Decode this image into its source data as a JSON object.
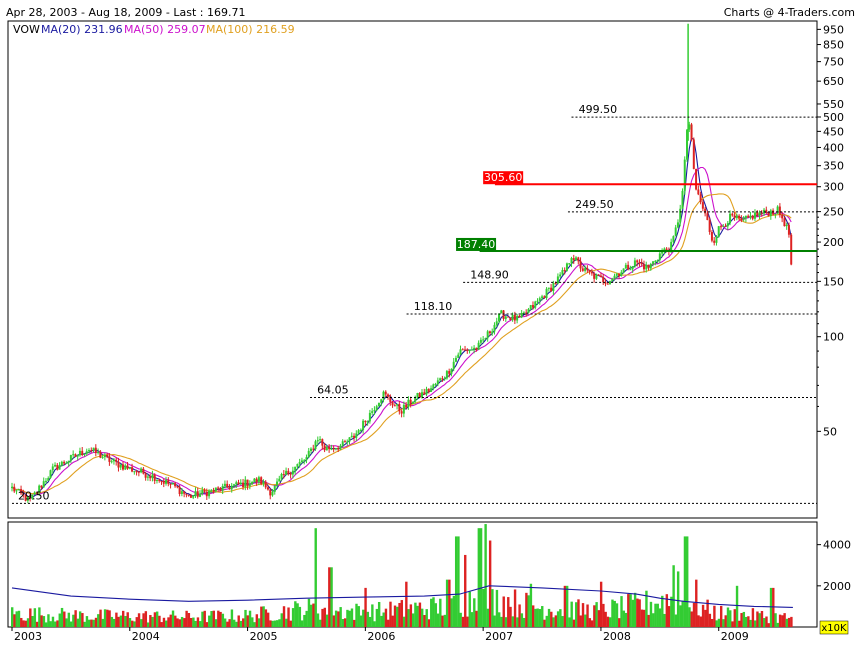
{
  "header": {
    "range_info": "Apr 28, 2003 - Aug 18, 2009 - Last : 169.71",
    "credit": "Charts @ 4-Traders.com"
  },
  "legend": [
    {
      "label": "VOW",
      "color": "#000000"
    },
    {
      "label": "MA(20) 231.96",
      "color": "#1a1aa0"
    },
    {
      "label": "MA(50) 259.07",
      "color": "#cc11cc"
    },
    {
      "label": "MA(100) 216.59",
      "color": "#e0a020"
    }
  ],
  "colors": {
    "up": "#33cc33",
    "down": "#dd2222",
    "ma20": "#1a1aa0",
    "ma50": "#cc11cc",
    "ma100": "#e0a020",
    "resistance": "#ff0000",
    "support": "#008000"
  },
  "volume_unit_label": "x10K",
  "chart_data": {
    "type": "bar",
    "title": "Apr 28, 2003 - Aug 18, 2009 - Last : 169.71",
    "scale": "log",
    "x_range": [
      2003.0,
      2009.69
    ],
    "x_ticks": [
      "2003",
      "2004",
      "2005",
      "2006",
      "2007",
      "2008",
      "2009"
    ],
    "price_ylim": [
      26.5,
      1010
    ],
    "price_ticks": [
      {
        "v": 950,
        "label": "950"
      },
      {
        "v": 850,
        "label": "850"
      },
      {
        "v": 750,
        "label": "750"
      },
      {
        "v": 650,
        "label": "650"
      },
      {
        "v": 550,
        "label": "550"
      },
      {
        "v": 500,
        "label": "500"
      },
      {
        "v": 450,
        "label": "450"
      },
      {
        "v": 400,
        "label": "400"
      },
      {
        "v": 350,
        "label": "350"
      },
      {
        "v": 300,
        "label": "300"
      },
      {
        "v": 250,
        "label": "250"
      },
      {
        "v": 200,
        "label": "200"
      },
      {
        "v": 150,
        "label": "150"
      },
      {
        "v": 100,
        "label": "100"
      },
      {
        "v": 50,
        "label": "50"
      }
    ],
    "last": 169.71,
    "price_anchors": [
      [
        2003.0,
        33
      ],
      [
        2003.15,
        30
      ],
      [
        2003.35,
        38
      ],
      [
        2003.5,
        41
      ],
      [
        2003.65,
        44
      ],
      [
        2003.85,
        40
      ],
      [
        2004.0,
        38
      ],
      [
        2004.2,
        36
      ],
      [
        2004.4,
        33
      ],
      [
        2004.5,
        31
      ],
      [
        2004.65,
        32
      ],
      [
        2004.8,
        33
      ],
      [
        2004.95,
        34
      ],
      [
        2005.1,
        35
      ],
      [
        2005.2,
        32
      ],
      [
        2005.3,
        36
      ],
      [
        2005.5,
        41
      ],
      [
        2005.6,
        48
      ],
      [
        2005.65,
        44
      ],
      [
        2005.8,
        45
      ],
      [
        2005.9,
        48
      ],
      [
        2006.0,
        54
      ],
      [
        2006.15,
        66
      ],
      [
        2006.3,
        58
      ],
      [
        2006.4,
        63
      ],
      [
        2006.55,
        68
      ],
      [
        2006.7,
        77
      ],
      [
        2006.8,
        90
      ],
      [
        2006.95,
        92
      ],
      [
        2007.05,
        103
      ],
      [
        2007.15,
        118
      ],
      [
        2007.3,
        113
      ],
      [
        2007.45,
        128
      ],
      [
        2007.55,
        140
      ],
      [
        2007.7,
        163
      ],
      [
        2007.75,
        182
      ],
      [
        2007.85,
        163
      ],
      [
        2007.95,
        155
      ],
      [
        2008.05,
        150
      ],
      [
        2008.15,
        160
      ],
      [
        2008.3,
        173
      ],
      [
        2008.4,
        165
      ],
      [
        2008.5,
        183
      ],
      [
        2008.6,
        195
      ],
      [
        2008.65,
        230
      ],
      [
        2008.7,
        300
      ],
      [
        2008.72,
        405
      ],
      [
        2008.74,
        510
      ],
      [
        2008.77,
        410
      ],
      [
        2008.8,
        300
      ],
      [
        2008.85,
        265
      ],
      [
        2008.9,
        235
      ],
      [
        2008.95,
        200
      ],
      [
        2009.0,
        220
      ],
      [
        2009.1,
        240
      ],
      [
        2009.2,
        232
      ],
      [
        2009.3,
        244
      ],
      [
        2009.4,
        248
      ],
      [
        2009.5,
        252
      ],
      [
        2009.55,
        235
      ],
      [
        2009.6,
        210
      ],
      [
        2009.63,
        169.71
      ]
    ],
    "volume_ylim": [
      0,
      5100
    ],
    "volume_ticks": [
      {
        "v": 4000,
        "label": "4000"
      },
      {
        "v": 2000,
        "label": "2000"
      }
    ],
    "volume_anchors": [
      [
        2003.0,
        600
      ],
      [
        2003.6,
        500
      ],
      [
        2004.5,
        450
      ],
      [
        2005.0,
        500
      ],
      [
        2005.5,
        800
      ],
      [
        2006.0,
        650
      ],
      [
        2006.7,
        900
      ],
      [
        2007.0,
        1300
      ],
      [
        2007.5,
        850
      ],
      [
        2008.0,
        700
      ],
      [
        2008.6,
        1200
      ],
      [
        2009.0,
        600
      ],
      [
        2009.63,
        400
      ]
    ],
    "volume_spikes": [
      [
        2005.58,
        4800
      ],
      [
        2005.7,
        2900
      ],
      [
        2006.0,
        1900
      ],
      [
        2006.35,
        2200
      ],
      [
        2006.7,
        2300
      ],
      [
        2006.78,
        4400
      ],
      [
        2006.84,
        3500
      ],
      [
        2006.97,
        4800
      ],
      [
        2007.02,
        5000
      ],
      [
        2007.06,
        4200
      ],
      [
        2007.4,
        2100
      ],
      [
        2007.7,
        2000
      ],
      [
        2008.0,
        2200
      ],
      [
        2008.62,
        3000
      ],
      [
        2008.66,
        2700
      ],
      [
        2008.72,
        4400
      ],
      [
        2008.8,
        2300
      ],
      [
        2009.15,
        2000
      ],
      [
        2009.45,
        1900
      ]
    ],
    "ma100_volume_path": [
      [
        2003.0,
        1900
      ],
      [
        2003.5,
        1500
      ],
      [
        2004.0,
        1350
      ],
      [
        2004.5,
        1250
      ],
      [
        2005.0,
        1300
      ],
      [
        2005.5,
        1400
      ],
      [
        2006.0,
        1450
      ],
      [
        2006.5,
        1500
      ],
      [
        2006.8,
        1600
      ],
      [
        2007.05,
        2000
      ],
      [
        2007.5,
        1900
      ],
      [
        2008.0,
        1750
      ],
      [
        2008.3,
        1600
      ],
      [
        2008.5,
        1400
      ],
      [
        2008.7,
        1250
      ],
      [
        2009.0,
        1100
      ],
      [
        2009.3,
        1000
      ],
      [
        2009.63,
        950
      ]
    ],
    "levels": [
      {
        "value": 499.5,
        "label": "499.50",
        "style": "dotted",
        "x_start": 2007.75,
        "label_x": 2007.76
      },
      {
        "value": 305.6,
        "label": "305.60",
        "style": "solid-red",
        "x_start": 2007.1,
        "label_x": 2007.0
      },
      {
        "value": 249.5,
        "label": "249.50",
        "style": "dotted",
        "x_start": 2007.72,
        "label_x": 2007.73
      },
      {
        "value": 187.4,
        "label": "187.40",
        "style": "solid-green",
        "x_start": 2006.97,
        "label_x": 2006.77
      },
      {
        "value": 148.9,
        "label": "148.90",
        "style": "dotted",
        "x_start": 2006.83,
        "label_x": 2006.84
      },
      {
        "value": 118.1,
        "label": "118.10",
        "style": "dotted",
        "x_start": 2006.35,
        "label_x": 2006.36
      },
      {
        "value": 64.05,
        "label": "64.05",
        "style": "dotted",
        "x_start": 2005.53,
        "label_x": 2005.54
      },
      {
        "value": 29.5,
        "label": "29.50",
        "style": "dotted",
        "x_start": 2003.0,
        "label_x": 2003.0
      }
    ]
  }
}
